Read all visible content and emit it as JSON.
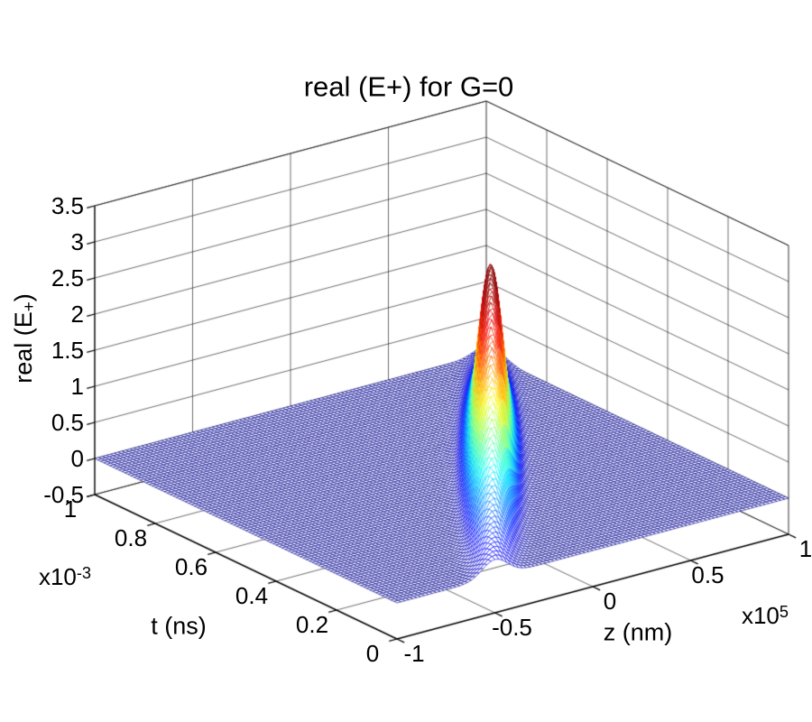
{
  "chart_data": {
    "type": "surface",
    "title": "real (E+) for G=0",
    "colormap": "jet",
    "background_color": "#ffffff",
    "flat_mesh_color": "#000091",
    "peak_top_color": "#7f0000",
    "value_axis": {
      "label_pre": "real (E",
      "label_sub": "+",
      "label_post": ")",
      "ticks": [
        -0.5,
        0,
        0.5,
        1,
        1.5,
        2,
        2.5,
        3,
        3.5
      ],
      "tick_labels": [
        "-0.5",
        "0",
        "0.5",
        "1",
        "1.5",
        "2",
        "2.5",
        "3",
        "3.5"
      ],
      "range": [
        -0.5,
        3.5
      ],
      "grid": true
    },
    "t_axis": {
      "label": "t (ns)",
      "multiplier_base": "x10",
      "multiplier_exp": "-3",
      "ticks": [
        0,
        0.2,
        0.4,
        0.6,
        0.8,
        1
      ],
      "tick_labels": [
        "0",
        "0.2",
        "0.4",
        "0.6",
        "0.8",
        "1"
      ],
      "range": [
        0,
        1
      ],
      "grid": true
    },
    "z_axis": {
      "label": "z (nm)",
      "multiplier_base": "x10",
      "multiplier_exp": "5",
      "ticks": [
        -1,
        -0.5,
        0,
        0.5,
        1
      ],
      "tick_labels": [
        "-1",
        "-0.5",
        "0",
        "0.5",
        "1"
      ],
      "range": [
        -1,
        1
      ],
      "grid": true
    },
    "surface": {
      "description": "flat field at value 0 with one narrow propagating Gaussian pulse spike",
      "baseline_value": 0,
      "peak_value": 2.8,
      "pulse_z_start": -0.5,
      "pulse_velocity_z_per_t": 1.5,
      "pulse_width_z": 0.09,
      "amp_peak_t": 0.47,
      "amp_sigma_t": 0.3,
      "grid_points": 100,
      "color_range": [
        -0.05,
        2.8
      ]
    }
  }
}
